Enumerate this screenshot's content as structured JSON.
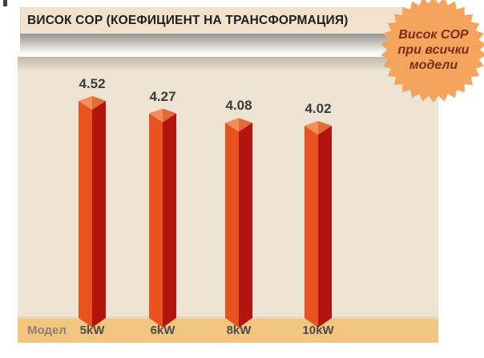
{
  "title_bar": {
    "text": "ВИСОК COP (КОЕФИЦИЕНТ НА ТРАНСФОРМАЦИЯ)"
  },
  "badge": {
    "lines": [
      "Висок COP",
      "при всички",
      "модели"
    ],
    "fill": "#F4A45C",
    "text_color": "#7B2C17"
  },
  "chart_data": {
    "type": "bar",
    "title": "ВИСОК COP (КОЕФИЦИЕНТ НА ТРАНСФОРМАЦИЯ)",
    "categories": [
      "5kW",
      "6kW",
      "8kW",
      "10kW"
    ],
    "values": [
      4.52,
      4.27,
      4.08,
      4.02
    ],
    "value_labels": [
      "4.52",
      "4.27",
      "4.08",
      "4.02"
    ],
    "xlabel": "Модел",
    "ylabel": "",
    "ylim": [
      0,
      5
    ],
    "grid": false,
    "legend": false,
    "colors": {
      "bar_left_face": "#E8531F",
      "bar_right_face": "#B2140F",
      "bar_cap_left": "#F28E5D",
      "bar_cap_right": "#E16B39",
      "plot_background": "#EEE4D3",
      "axis_band": "#F2C581",
      "value_label": "#3C3C3C"
    }
  }
}
